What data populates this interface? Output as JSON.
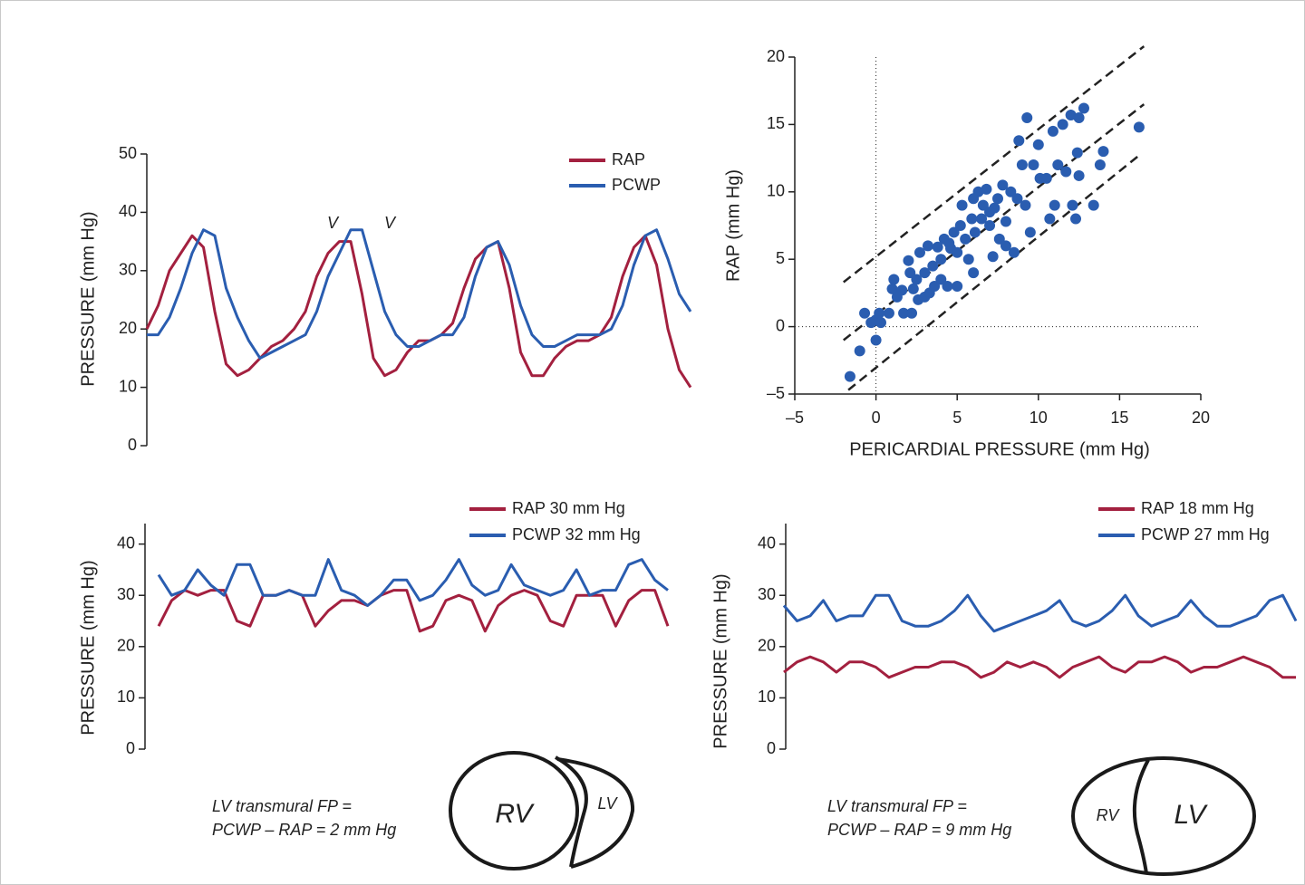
{
  "chart_data": [
    {
      "type": "line",
      "y_label": "PRESSURE (mm Hg)",
      "ylim": [
        0,
        50
      ],
      "yticks": [
        0,
        10,
        20,
        30,
        40,
        50
      ],
      "annotations": [
        "V",
        "V"
      ],
      "series": [
        {
          "name": "RAP",
          "color": "#a3203f",
          "values": [
            20,
            24,
            30,
            33,
            36,
            34,
            23,
            14,
            12,
            13,
            15,
            17,
            18,
            20,
            23,
            29,
            33,
            35,
            35,
            26,
            15,
            12,
            13,
            16,
            18,
            18,
            19,
            21,
            27,
            32,
            34,
            35,
            27,
            16,
            12,
            12,
            15,
            17,
            18,
            18,
            19,
            22,
            29,
            34,
            36,
            31,
            20,
            13,
            10
          ]
        },
        {
          "name": "PCWP",
          "color": "#2a5db0",
          "values": [
            19,
            19,
            22,
            27,
            33,
            37,
            36,
            27,
            22,
            18,
            15,
            16,
            17,
            18,
            19,
            23,
            29,
            33,
            37,
            37,
            30,
            23,
            19,
            17,
            17,
            18,
            19,
            19,
            22,
            29,
            34,
            35,
            31,
            24,
            19,
            17,
            17,
            18,
            19,
            19,
            19,
            20,
            24,
            31,
            36,
            37,
            32,
            26,
            23
          ]
        }
      ]
    },
    {
      "type": "scatter",
      "x_label": "PERICARDIAL PRESSURE (mm Hg)",
      "y_label": "RAP (mm Hg)",
      "xlim": [
        -5,
        20
      ],
      "ylim": [
        -5,
        20
      ],
      "xticks": [
        {
          "value": -5,
          "label": "–5"
        },
        0,
        5,
        10,
        15,
        20
      ],
      "yticks": [
        {
          "value": -5,
          "label": "–5"
        },
        0,
        5,
        10,
        15,
        20
      ],
      "zero_lines": true,
      "color": "#2a5db0",
      "x": [
        -1.6,
        -1,
        -0.7,
        -0.3,
        0,
        0,
        0.2,
        0.3,
        0.8,
        1,
        1.1,
        1.3,
        1.6,
        1.7,
        2,
        2.1,
        2.2,
        2.3,
        2.5,
        2.6,
        2.7,
        3,
        3,
        3.2,
        3.3,
        3.5,
        3.6,
        3.8,
        4,
        4,
        4.2,
        4.4,
        4.6,
        4.8,
        5,
        5,
        5.2,
        5.3,
        5.5,
        5.7,
        5.9,
        6,
        6.1,
        6.3,
        6.5,
        6.6,
        6.8,
        7,
        7.2,
        7.3,
        7.5,
        7.6,
        7.8,
        8,
        8,
        8.3,
        8.5,
        8.7,
        8.8,
        9,
        9.2,
        9.3,
        9.5,
        9.7,
        10,
        10.1,
        10.5,
        10.7,
        10.9,
        11,
        11.2,
        11.5,
        11.7,
        12,
        12.1,
        12.3,
        12.4,
        12.5,
        12.8,
        13.4,
        13.8,
        14,
        16.2,
        12.5,
        7,
        4.5,
        6
      ],
      "values": [
        -3.7,
        -1.8,
        1,
        0.3,
        -1,
        0.5,
        1,
        0.3,
        1,
        2.8,
        3.5,
        2.2,
        2.7,
        1,
        4.9,
        4,
        1,
        2.8,
        3.5,
        2,
        5.5,
        4,
        2.2,
        6,
        2.5,
        4.5,
        3,
        5.9,
        5,
        3.5,
        6.5,
        3,
        5.8,
        7,
        5.5,
        3,
        7.5,
        9,
        6.5,
        5,
        8,
        4,
        7,
        10,
        8,
        9,
        10.2,
        7.5,
        5.2,
        8.8,
        9.5,
        6.5,
        10.5,
        7.8,
        6,
        10,
        5.5,
        9.5,
        13.8,
        12,
        9,
        15.5,
        7,
        12,
        13.5,
        11,
        11,
        8,
        14.5,
        9,
        12,
        15,
        11.5,
        15.7,
        9,
        8,
        12.9,
        15.5,
        16.2,
        9,
        12,
        13,
        14.8,
        11.2,
        8.5,
        6.2,
        9.5
      ],
      "ref_lines": [
        {
          "x": [
            -2,
            16.5
          ],
          "y": [
            3.3,
            20.8
          ]
        },
        {
          "x": [
            -2,
            16.5
          ],
          "y": [
            -1,
            16.5
          ]
        },
        {
          "x": [
            -1.7,
            16.3
          ],
          "y": [
            -4.7,
            12.8
          ]
        }
      ]
    },
    {
      "type": "line",
      "y_label": "PRESSURE (mm Hg)",
      "ylim": [
        0,
        44
      ],
      "yticks": [
        0,
        10,
        20,
        30,
        40
      ],
      "annotations": [
        "LV transmural FP =",
        "PCWP – RAP = 2 mm Hg",
        "RV",
        "LV"
      ],
      "series": [
        {
          "name": "RAP 30 mm Hg",
          "color": "#a3203f",
          "values": [
            24,
            29,
            31,
            30,
            31,
            31,
            25,
            24,
            30,
            30,
            31,
            30,
            24,
            27,
            29,
            29,
            28,
            30,
            31,
            31,
            23,
            24,
            29,
            30,
            29,
            23,
            28,
            30,
            31,
            30,
            25,
            24,
            30,
            30,
            30,
            24,
            29,
            31,
            31,
            24
          ]
        },
        {
          "name": "PCWP 32 mm Hg",
          "color": "#2a5db0",
          "values": [
            34,
            30,
            31,
            35,
            32,
            30,
            36,
            36,
            30,
            30,
            31,
            30,
            30,
            37,
            31,
            30,
            28,
            30,
            33,
            33,
            29,
            30,
            33,
            37,
            32,
            30,
            31,
            36,
            32,
            31,
            30,
            31,
            35,
            30,
            31,
            31,
            36,
            37,
            33,
            31
          ]
        }
      ]
    },
    {
      "type": "line",
      "y_label": "PRESSURE (mm Hg)",
      "ylim": [
        0,
        44
      ],
      "yticks": [
        0,
        10,
        20,
        30,
        40
      ],
      "annotations": [
        "LV transmural FP =",
        "PCWP – RAP = 9 mm Hg",
        "RV",
        "LV"
      ],
      "series": [
        {
          "name": "RAP 18 mm Hg",
          "color": "#a3203f",
          "values": [
            15,
            17,
            18,
            17,
            15,
            17,
            17,
            16,
            14,
            15,
            16,
            16,
            17,
            17,
            16,
            14,
            15,
            17,
            16,
            17,
            16,
            14,
            16,
            17,
            18,
            16,
            15,
            17,
            17,
            18,
            17,
            15,
            16,
            16,
            17,
            18,
            17,
            16,
            14,
            14
          ]
        },
        {
          "name": "PCWP 27 mm Hg",
          "color": "#2a5db0",
          "values": [
            28,
            25,
            26,
            29,
            25,
            26,
            26,
            30,
            30,
            25,
            24,
            24,
            25,
            27,
            30,
            26,
            23,
            24,
            25,
            26,
            27,
            29,
            25,
            24,
            25,
            27,
            30,
            26,
            24,
            25,
            26,
            29,
            26,
            24,
            24,
            25,
            26,
            29,
            30,
            25
          ]
        }
      ]
    }
  ]
}
